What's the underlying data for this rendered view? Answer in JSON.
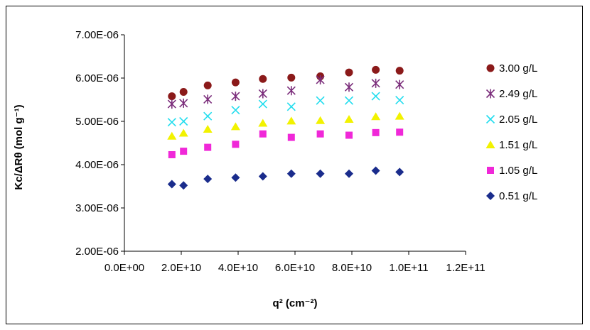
{
  "chart_data": {
    "type": "scatter",
    "title": "",
    "xlabel": "q² (cm⁻²)",
    "ylabel": "Kc/ΔRθ (mol g⁻¹)",
    "xlim": [
      0,
      120000000000.0
    ],
    "ylim": [
      2e-06,
      7e-06
    ],
    "x_ticks": [
      0,
      20000000000.0,
      40000000000.0,
      60000000000.0,
      80000000000.0,
      100000000000.0,
      120000000000.0
    ],
    "x_tick_labels": [
      "0.0E+00",
      "2.0E+10",
      "4.0E+10",
      "6.0E+10",
      "8.0E+10",
      "1.0E+11",
      "1.2E+11"
    ],
    "y_ticks": [
      2e-06,
      3e-06,
      4e-06,
      5e-06,
      6e-06,
      7e-06
    ],
    "y_tick_labels": [
      "2.00E-06",
      "3.00E-06",
      "4.00E-06",
      "5.00E-06",
      "6.00E-06",
      "7.00E-06"
    ],
    "grid": false,
    "legend_position": "right",
    "x": [
      16700000000.0,
      20800000000.0,
      29300000000.0,
      39100000000.0,
      48700000000.0,
      58700000000.0,
      68900000000.0,
      79000000000.0,
      88400000000.0,
      96800000000.0
    ],
    "series": [
      {
        "name": "3.00 g/L",
        "marker": "circle",
        "color": "#8B1A1A",
        "values": [
          5.58e-06,
          5.68e-06,
          5.83e-06,
          5.9e-06,
          5.98e-06,
          6.01e-06,
          6.04e-06,
          6.13e-06,
          6.19e-06,
          6.17e-06
        ]
      },
      {
        "name": "2.49 g/L",
        "marker": "asterisk",
        "color": "#7B2D7B",
        "values": [
          5.4e-06,
          5.42e-06,
          5.51e-06,
          5.58e-06,
          5.64e-06,
          5.71e-06,
          5.96e-06,
          5.79e-06,
          5.88e-06,
          5.85e-06
        ]
      },
      {
        "name": "2.05 g/L",
        "marker": "x",
        "color": "#22DDEE",
        "values": [
          4.98e-06,
          5e-06,
          5.12e-06,
          5.26e-06,
          5.4e-06,
          5.34e-06,
          5.48e-06,
          5.48e-06,
          5.58e-06,
          5.49e-06
        ]
      },
      {
        "name": "1.51 g/L",
        "marker": "triangle",
        "color": "#F2F200",
        "values": [
          4.66e-06,
          4.73e-06,
          4.82e-06,
          4.88e-06,
          4.96e-06,
          5.01e-06,
          5.02e-06,
          5.05e-06,
          5.11e-06,
          5.12e-06
        ]
      },
      {
        "name": "1.05 g/L",
        "marker": "square",
        "color": "#F028D8",
        "values": [
          4.23e-06,
          4.31e-06,
          4.4e-06,
          4.47e-06,
          4.71e-06,
          4.63e-06,
          4.71e-06,
          4.68e-06,
          4.74e-06,
          4.75e-06
        ]
      },
      {
        "name": "0.51 g/L",
        "marker": "diamond",
        "color": "#1A2C8C",
        "values": [
          3.55e-06,
          3.52e-06,
          3.67e-06,
          3.7e-06,
          3.73e-06,
          3.79e-06,
          3.79e-06,
          3.79e-06,
          3.86e-06,
          3.83e-06
        ]
      }
    ]
  }
}
